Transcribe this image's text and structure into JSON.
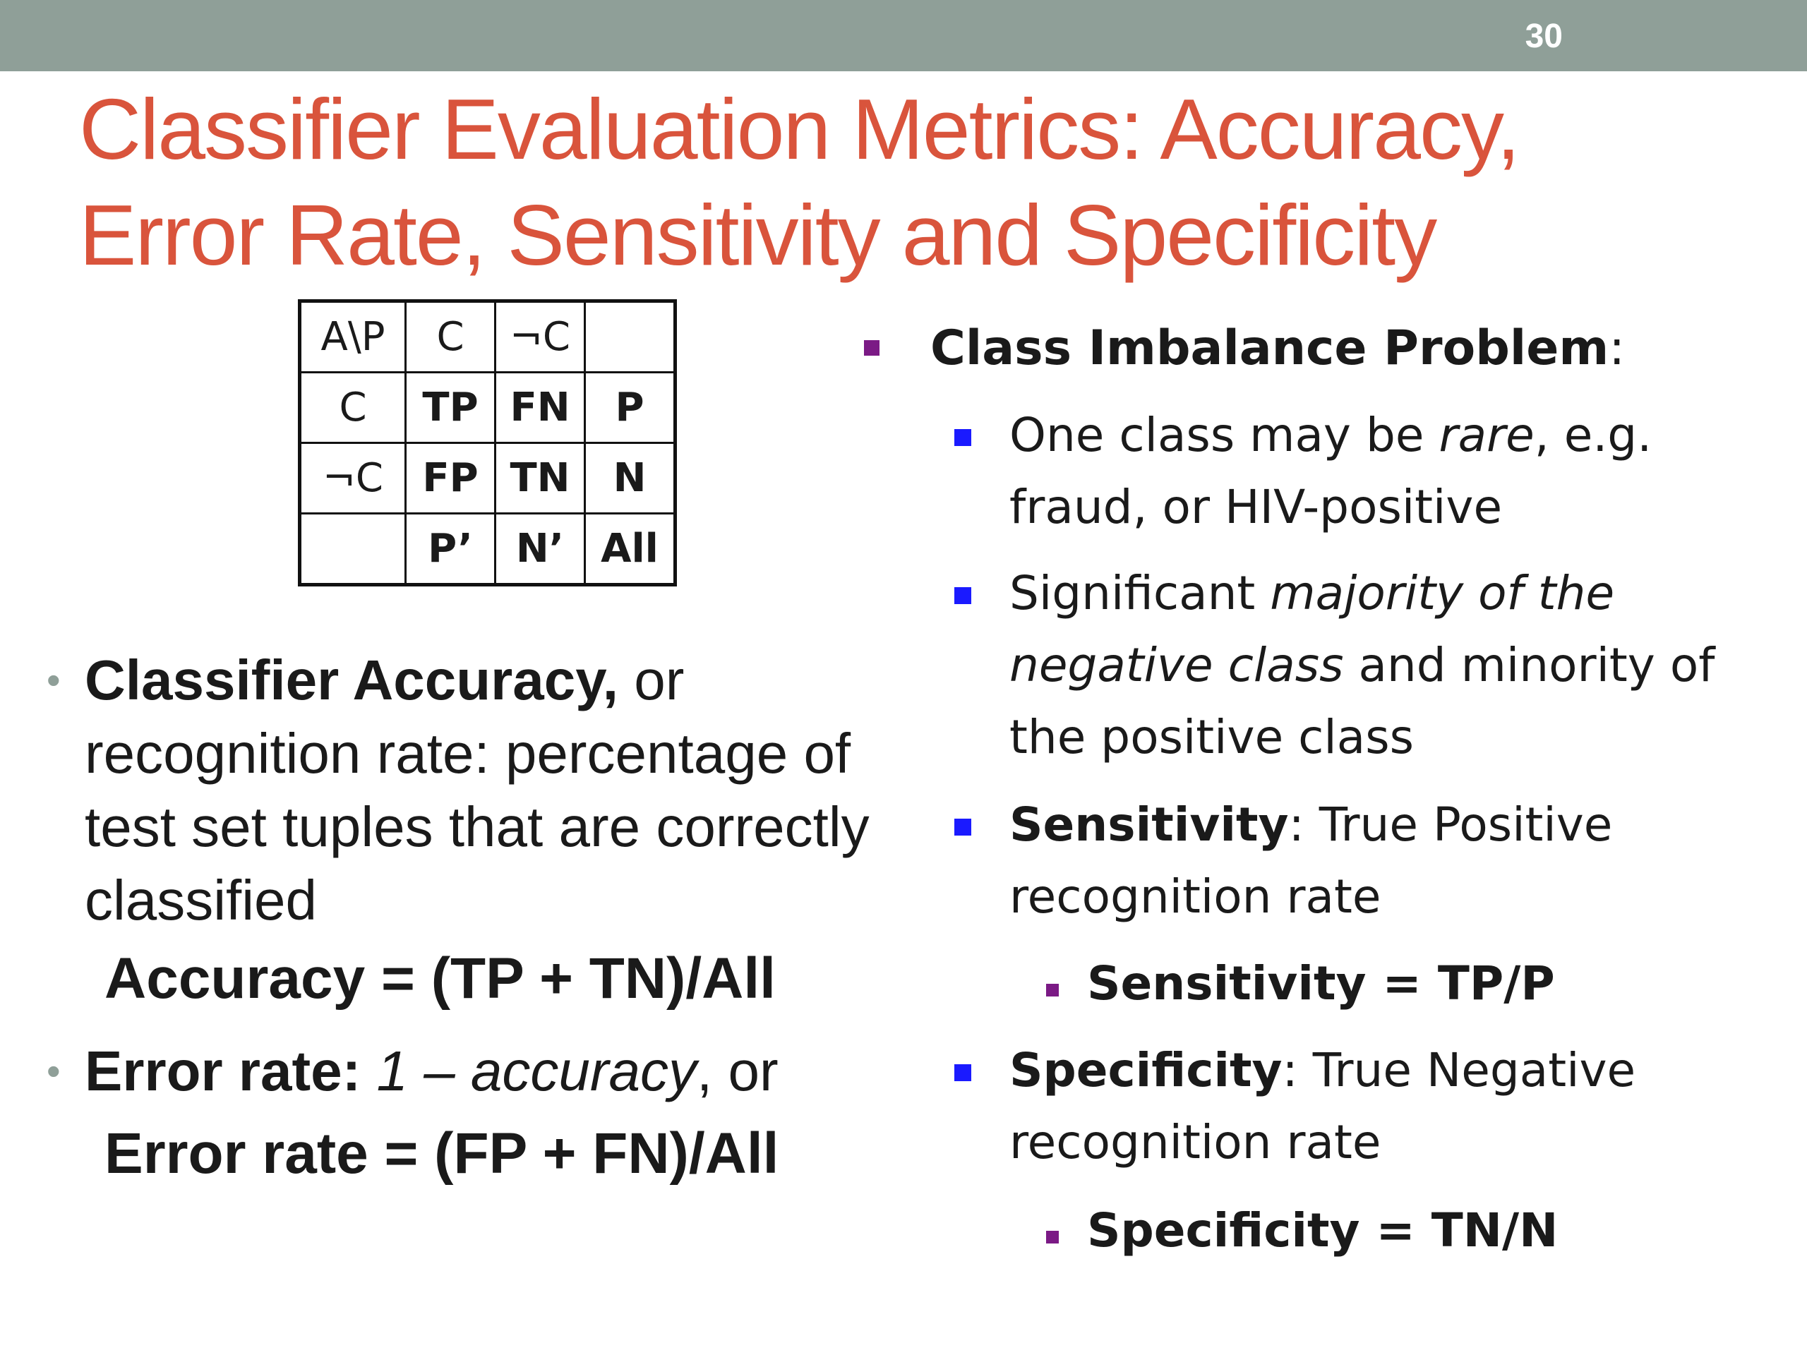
{
  "slide_number": "30",
  "title": {
    "line1": "Classifier Evaluation Metrics: Accuracy,",
    "line2": "Error Rate, Sensitivity and Specificity"
  },
  "matrix": {
    "rows": [
      [
        {
          "text": "A\\P",
          "bold": false
        },
        {
          "text": "C",
          "bold": false
        },
        {
          "text": "¬C",
          "bold": false
        },
        {
          "text": "",
          "bold": false
        }
      ],
      [
        {
          "text": "C",
          "bold": false
        },
        {
          "text": "TP",
          "bold": true
        },
        {
          "text": "FN",
          "bold": true
        },
        {
          "text": "P",
          "bold": true
        }
      ],
      [
        {
          "text": "¬C",
          "bold": false
        },
        {
          "text": "FP",
          "bold": true
        },
        {
          "text": "TN",
          "bold": true
        },
        {
          "text": "N",
          "bold": true
        }
      ],
      [
        {
          "text": "",
          "bold": false
        },
        {
          "text": "P’",
          "bold": true
        },
        {
          "text": "N’",
          "bold": true
        },
        {
          "text": "All",
          "bold": true
        }
      ]
    ]
  },
  "left": {
    "accuracy": {
      "bullet": "•",
      "term": "Classifier Accuracy,",
      "rest": " or recognition rate: percentage of test set tuples that are correctly classified",
      "formula": "Accuracy = (TP + TN)/All"
    },
    "error": {
      "bullet": "•",
      "term": "Error rate:",
      "italic": " 1 – accuracy",
      "rest": ", or",
      "formula": "Error rate = (FP + FN)/All"
    }
  },
  "right": {
    "heading": {
      "bold": "Class Imbalance Problem",
      "plain": ":"
    },
    "rare": {
      "a": "One class may be ",
      "italic": "rare",
      "b": ", e.g. fraud, or HIV-positive"
    },
    "majority": {
      "a": "Significant ",
      "italic": "majority of the negative class",
      "b": " and minority of the positive class"
    },
    "sensitivity": {
      "bold": "Sensitivity",
      "plain": ": True Positive recognition rate",
      "formula": "Sensitivity = TP/P"
    },
    "specificity": {
      "bold": "Specificity",
      "plain": ": True Negative recognition rate",
      "formula": "Specificity = TN/N"
    }
  },
  "colors": {
    "topbar": "#8f9f98",
    "title": "#d9543c",
    "bullet_purple": "#7b1a85",
    "bullet_blue": "#1a1aff"
  }
}
